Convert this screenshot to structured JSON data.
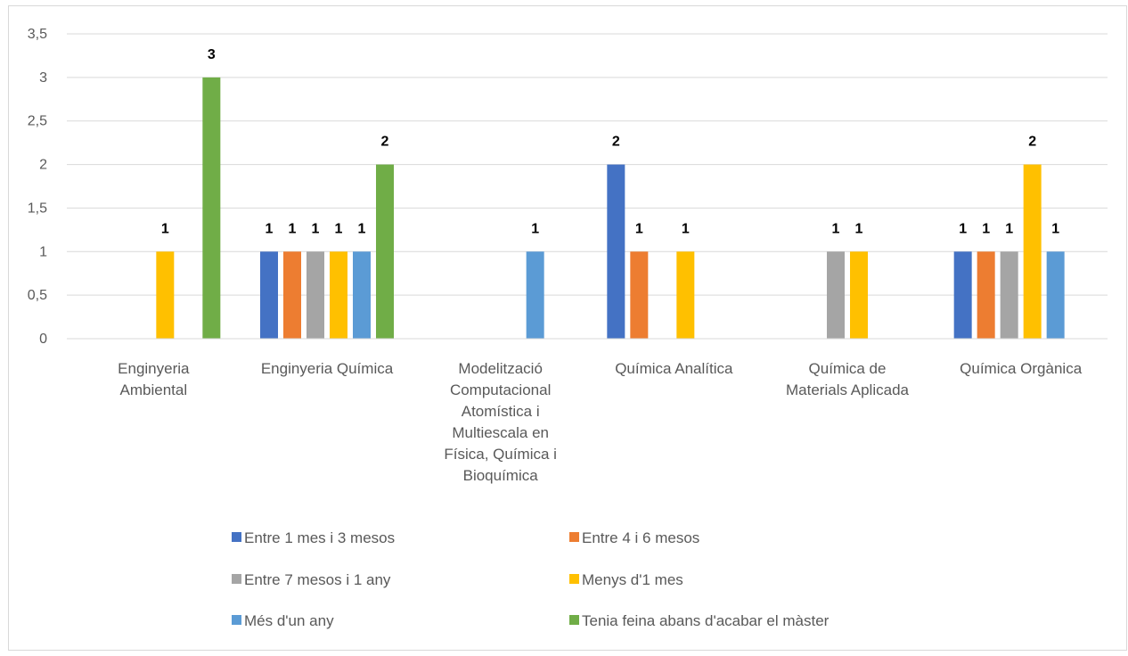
{
  "chart_data": {
    "type": "bar",
    "title": "",
    "xlabel": "",
    "ylabel": "",
    "ylim": [
      0,
      3.5
    ],
    "y_ticks": [
      "0",
      "0,5",
      "1",
      "1,5",
      "2",
      "2,5",
      "3",
      "3,5"
    ],
    "grid": "horizontal",
    "legend_position": "bottom",
    "categories": [
      "Enginyeria Ambiental",
      "Enginyeria Química",
      "Modelització Computacional Atomística i Multiescala en Física, Química i Bioquímica",
      "Química Analítica",
      "Química de Materials Aplicada",
      "Química Orgànica"
    ],
    "category_label_lines": [
      [
        "Enginyeria",
        "Ambiental"
      ],
      [
        "Enginyeria Química"
      ],
      [
        "Modelització",
        "Computacional",
        "Atomística i",
        "Multiescala en",
        "Física, Química i",
        "Bioquímica"
      ],
      [
        "Química Analítica"
      ],
      [
        "Química de",
        "Materials Aplicada"
      ],
      [
        "Química Orgànica"
      ]
    ],
    "series": [
      {
        "name": "Entre 1 mes i 3 mesos",
        "color": "#4472c4",
        "values": [
          null,
          1,
          null,
          2,
          null,
          1
        ]
      },
      {
        "name": "Entre 4 i 6 mesos",
        "color": "#ed7d31",
        "values": [
          null,
          1,
          null,
          1,
          null,
          1
        ]
      },
      {
        "name": "Entre 7 mesos i 1 any",
        "color": "#a5a5a5",
        "values": [
          null,
          1,
          null,
          null,
          1,
          1
        ]
      },
      {
        "name": "Menys d'1 mes",
        "color": "#ffc000",
        "values": [
          1,
          1,
          null,
          1,
          1,
          2
        ]
      },
      {
        "name": "Més d'un any",
        "color": "#5b9bd5",
        "values": [
          null,
          1,
          1,
          null,
          null,
          1
        ]
      },
      {
        "name": "Tenia feina abans d'acabar el màster",
        "color": "#70ad47",
        "values": [
          3,
          2,
          null,
          null,
          null,
          null
        ]
      }
    ]
  }
}
